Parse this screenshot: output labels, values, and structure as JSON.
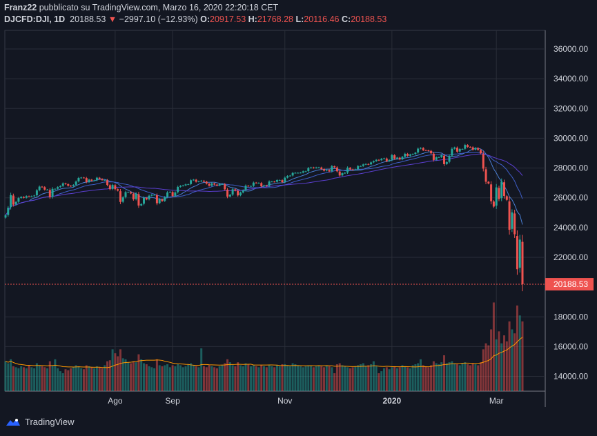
{
  "header": {
    "author": "Franz22",
    "published": "pubblicato su TradingView.com, Marzo 16, 2020 22:20:18 CET",
    "symbol": "DJCFD:DJI, 1D",
    "last": "20188.53",
    "change": "−2997.10 (−12.93%)",
    "o_label": "O:",
    "o": "20917.53",
    "h_label": "H:",
    "h": "21768.28",
    "l_label": "L:",
    "l": "20116.46",
    "c_label": "C:",
    "c": "20188.53"
  },
  "footer": {
    "brand": "TradingView"
  },
  "colors": {
    "up": "#26a69a",
    "down": "#ef5350",
    "ma_fast": "#4a7fd4",
    "ma_mid": "#3f5fc9",
    "ma_slow": "#5b3fd0",
    "volume_ma": "#ff9800",
    "background": "#131722"
  },
  "chart_data": {
    "type": "candlestick",
    "ylim": [
      13000,
      37000
    ],
    "yticks": [
      "36000.00",
      "34000.00",
      "32000.00",
      "30000.00",
      "28000.00",
      "26000.00",
      "24000.00",
      "22000.00",
      "18000.00",
      "16000.00",
      "14000.00"
    ],
    "last_price_label": "20188.53",
    "grid": true,
    "months": [
      {
        "month": "2019-06",
        "label": "",
        "closes": [
          24820,
          25330,
          26180,
          25540,
          25720,
          25980,
          26060,
          26000,
          26110,
          26090,
          26110,
          26150,
          26500,
          26750,
          26720,
          26550,
          26550,
          26040,
          26600,
          26600
        ],
        "volumes": [
          300,
          280,
          320,
          250,
          240,
          230,
          250,
          240,
          230,
          260,
          240,
          230,
          280,
          260,
          250,
          240,
          230,
          300,
          260,
          320
        ]
      },
      {
        "month": "2019-07",
        "label": "",
        "closes": [
          26720,
          26790,
          26970,
          26920,
          26810,
          26780,
          26860,
          27090,
          27330,
          27360,
          27340,
          27060,
          27220,
          27150,
          27170,
          27350,
          27270,
          27190,
          27190,
          26860,
          26580,
          26860
        ],
        "volumes": [
          230,
          200,
          180,
          220,
          210,
          230,
          240,
          260,
          250,
          230,
          220,
          260,
          250,
          240,
          230,
          250,
          240,
          230,
          260,
          300,
          310,
          420
        ]
      },
      {
        "month": "2019-08",
        "label": "Ago",
        "closes": [
          26580,
          26480,
          25720,
          26030,
          26380,
          26380,
          26290,
          25900,
          26280,
          25480,
          25580,
          26000,
          25890,
          26140,
          26200,
          26200,
          25630,
          25900,
          25780,
          26040,
          26360,
          26400
        ],
        "volumes": [
          380,
          350,
          420,
          330,
          320,
          290,
          280,
          300,
          290,
          370,
          320,
          280,
          270,
          250,
          240,
          230,
          320,
          260,
          250,
          260,
          270,
          240
        ]
      },
      {
        "month": "2019-09",
        "label": "Sep",
        "closes": [
          26120,
          26360,
          26730,
          26800,
          26830,
          26900,
          26910,
          27180,
          27220,
          27080,
          27110,
          27150,
          27090,
          26950,
          26810,
          26970,
          26890,
          26820,
          26920,
          26920
        ],
        "volumes": [
          260,
          250,
          270,
          260,
          240,
          250,
          270,
          280,
          260,
          250,
          240,
          430,
          250,
          240,
          260,
          250,
          240,
          230,
          250,
          260
        ]
      },
      {
        "month": "2019-10",
        "label": "",
        "closes": [
          26570,
          26080,
          26200,
          26570,
          26480,
          26160,
          26350,
          26500,
          26810,
          26790,
          26790,
          27020,
          26990,
          27000,
          26770,
          26830,
          26790,
          27090,
          27090,
          27070,
          27190,
          27190,
          27050
        ],
        "volumes": [
          280,
          320,
          290,
          260,
          250,
          290,
          260,
          250,
          280,
          270,
          250,
          260,
          250,
          240,
          260,
          250,
          240,
          260,
          250,
          240,
          260,
          250,
          270
        ]
      },
      {
        "month": "2019-11",
        "label": "Nov",
        "closes": [
          27350,
          27460,
          27490,
          27670,
          27680,
          27680,
          27690,
          27780,
          27780,
          28000,
          28040,
          28000,
          28040,
          28040,
          27930,
          27820,
          27870,
          27770,
          28120,
          28050
        ],
        "volumes": [
          270,
          260,
          250,
          280,
          270,
          260,
          250,
          240,
          250,
          260,
          250,
          240,
          250,
          260,
          250,
          240,
          260,
          250,
          240,
          180
        ]
      },
      {
        "month": "2019-12",
        "label": "",
        "closes": [
          27780,
          27500,
          27650,
          27680,
          28020,
          27910,
          27880,
          27910,
          28130,
          28130,
          28240,
          28270,
          28240,
          28380,
          28460,
          28550,
          28520,
          28620,
          28650,
          28460,
          28540
        ],
        "volumes": [
          270,
          280,
          260,
          250,
          240,
          230,
          240,
          250,
          260,
          270,
          280,
          250,
          260,
          270,
          300,
          250,
          180,
          200,
          230,
          240,
          220
        ]
      },
      {
        "month": "2020-01",
        "label": "2020",
        "closes": [
          28870,
          28630,
          28700,
          28580,
          28750,
          28960,
          28820,
          28910,
          28940,
          29030,
          29300,
          29350,
          29200,
          29190,
          29160,
          28990,
          28540,
          28720,
          28730,
          28860,
          28260
        ],
        "volumes": [
          240,
          250,
          230,
          240,
          260,
          250,
          240,
          230,
          260,
          270,
          280,
          320,
          260,
          250,
          240,
          260,
          300,
          280,
          270,
          290,
          360
        ]
      },
      {
        "month": "2020-02",
        "label": "",
        "closes": [
          28400,
          28810,
          29290,
          29380,
          29100,
          29280,
          29280,
          29550,
          29420,
          29400,
          29230,
          29350,
          29220,
          28990,
          27960,
          27080,
          26960,
          25770,
          25410
        ],
        "volumes": [
          280,
          290,
          300,
          280,
          270,
          260,
          280,
          290,
          270,
          260,
          280,
          270,
          260,
          290,
          420,
          480,
          460,
          620,
          890
        ]
      },
      {
        "month": "2020-03",
        "label": "Mar",
        "closes": [
          26700,
          25920,
          27090,
          26120,
          25860,
          23850,
          25020,
          23550,
          21200,
          23190,
          20190
        ],
        "volumes": [
          520,
          600,
          480,
          560,
          500,
          700,
          620,
          580,
          860,
          760,
          700
        ]
      }
    ]
  }
}
